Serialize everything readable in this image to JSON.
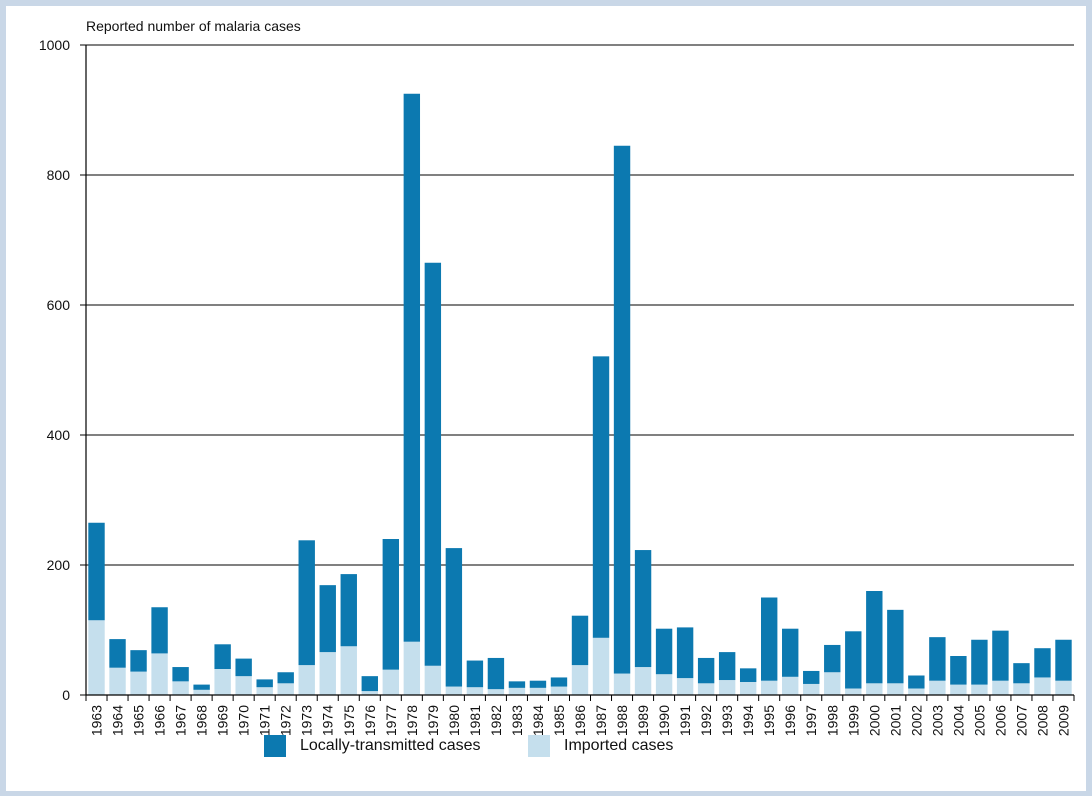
{
  "chart_data": {
    "type": "bar",
    "stacked": true,
    "title": "",
    "ylabel": "Reported number of malaria cases",
    "xlabel": "",
    "ylim": [
      0,
      1000
    ],
    "yticks": [
      0,
      200,
      400,
      600,
      800,
      1000
    ],
    "grid": true,
    "legend_position": "bottom",
    "categories": [
      "1963",
      "1964",
      "1965",
      "1966",
      "1967",
      "1968",
      "1969",
      "1970",
      "1971",
      "1972",
      "1973",
      "1974",
      "1975",
      "1976",
      "1977",
      "1978",
      "1979",
      "1980",
      "1981",
      "1982",
      "1983",
      "1984",
      "1985",
      "1986",
      "1987",
      "1988",
      "1989",
      "1990",
      "1991",
      "1992",
      "1993",
      "1994",
      "1995",
      "1996",
      "1997",
      "1998",
      "1999",
      "2000",
      "2001",
      "2002",
      "2003",
      "2004",
      "2005",
      "2006",
      "2007",
      "2008",
      "2009"
    ],
    "series": [
      {
        "name": "Imported cases",
        "color": "#c5dfed",
        "values": [
          115,
          42,
          36,
          64,
          21,
          8,
          40,
          29,
          12,
          18,
          46,
          66,
          75,
          6,
          39,
          82,
          45,
          13,
          12,
          9,
          11,
          11,
          13,
          46,
          88,
          33,
          43,
          32,
          26,
          18,
          23,
          20,
          22,
          28,
          17,
          35,
          10,
          18,
          18,
          10,
          22,
          16,
          16,
          22,
          18,
          27,
          22
        ]
      },
      {
        "name": "Locally-transmitted cases",
        "color": "#0c79b0",
        "values": [
          150,
          44,
          33,
          71,
          22,
          8,
          38,
          27,
          12,
          17,
          192,
          103,
          111,
          23,
          201,
          843,
          620,
          213,
          41,
          48,
          10,
          11,
          14,
          76,
          433,
          812,
          180,
          70,
          78,
          39,
          43,
          21,
          128,
          74,
          20,
          42,
          88,
          142,
          113,
          20,
          67,
          44,
          69,
          77,
          31,
          45,
          63
        ]
      }
    ]
  },
  "legend": {
    "local_label": "Locally-transmitted cases",
    "imported_label": "Imported cases",
    "local_color": "#0c79b0",
    "imported_color": "#c5dfed"
  }
}
